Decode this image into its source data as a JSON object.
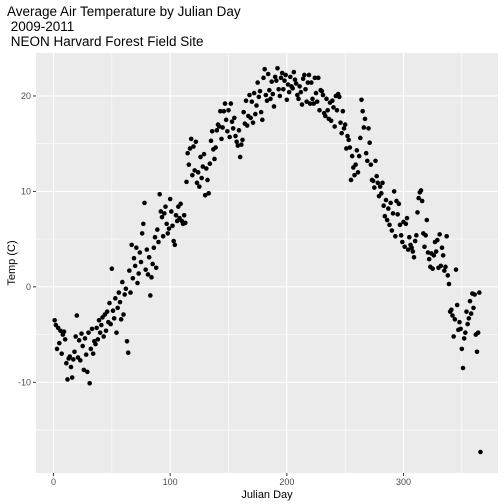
{
  "chart_data": {
    "type": "scatter",
    "title": "Average Air Temperature by Julian Day",
    "subtitle": [
      " 2009-2011",
      " NEON Harvard Forest Field Site"
    ],
    "xlabel": "Julian Day",
    "ylabel": "Temp (C)",
    "xlim": [
      -15,
      381
    ],
    "ylim": [
      -19.5,
      24.5
    ],
    "x_ticks": [
      0,
      100,
      200,
      300
    ],
    "y_ticks": [
      -10,
      0,
      10,
      20
    ],
    "x_tick_labels": [
      "0",
      "100",
      "200",
      "300"
    ],
    "y_tick_labels": [
      "-10",
      "0",
      "10",
      "20"
    ],
    "grid": true,
    "legend": "none",
    "colors": {
      "panel": "#EBEBEB",
      "grid_major": "#FFFFFF",
      "point": "#000000"
    },
    "points": [
      [
        1,
        -3.5
      ],
      [
        2,
        -4.0
      ],
      [
        3,
        -6.5
      ],
      [
        4,
        -4.3
      ],
      [
        5,
        -5.9
      ],
      [
        6,
        -4.6
      ],
      [
        7,
        -7.0
      ],
      [
        8,
        -5.0
      ],
      [
        9,
        -4.7
      ],
      [
        10,
        -5.5
      ],
      [
        11,
        -8.0
      ],
      [
        12,
        -9.7
      ],
      [
        13,
        -7.5
      ],
      [
        14,
        -7.3
      ],
      [
        15,
        -8.4
      ],
      [
        16,
        -9.5
      ],
      [
        17,
        -7.6
      ],
      [
        18,
        -6.8
      ],
      [
        19,
        -5.2
      ],
      [
        20,
        -3.0
      ],
      [
        21,
        -7.4
      ],
      [
        22,
        -5.6
      ],
      [
        23,
        -7.7
      ],
      [
        24,
        -4.9
      ],
      [
        25,
        -6.2
      ],
      [
        26,
        -8.7
      ],
      [
        27,
        -5.4
      ],
      [
        28,
        -7.1
      ],
      [
        29,
        -8.9
      ],
      [
        30,
        -4.8
      ],
      [
        31,
        -10.1
      ],
      [
        32,
        -6.5
      ],
      [
        33,
        -4.4
      ],
      [
        34,
        -7.0
      ],
      [
        35,
        -5.7
      ],
      [
        36,
        -6.0
      ],
      [
        37,
        -4.3
      ],
      [
        38,
        -5.5
      ],
      [
        39,
        -3.5
      ],
      [
        40,
        -4.8
      ],
      [
        41,
        -4.0
      ],
      [
        42,
        -3.2
      ],
      [
        43,
        -5.2
      ],
      [
        44,
        -2.9
      ],
      [
        45,
        -4.6
      ],
      [
        46,
        -2.6
      ],
      [
        47,
        -3.7
      ],
      [
        48,
        -1.7
      ],
      [
        49,
        -3.9
      ],
      [
        50,
        1.9
      ],
      [
        51,
        -2.5
      ],
      [
        52,
        -3.3
      ],
      [
        53,
        -1.2
      ],
      [
        54,
        -4.8
      ],
      [
        55,
        -2.2
      ],
      [
        56,
        -0.6
      ],
      [
        57,
        -1.6
      ],
      [
        58,
        -3.4
      ],
      [
        59,
        0.5
      ],
      [
        60,
        -2.9
      ],
      [
        61,
        -0.8
      ],
      [
        62,
        -0.2
      ],
      [
        63,
        -5.7
      ],
      [
        64,
        -6.9
      ],
      [
        65,
        1.7
      ],
      [
        66,
        -0.6
      ],
      [
        67,
        4.4
      ],
      [
        68,
        0.9
      ],
      [
        69,
        3.0
      ],
      [
        70,
        2.2
      ],
      [
        71,
        4.1
      ],
      [
        72,
        0.4
      ],
      [
        73,
        1.4
      ],
      [
        74,
        3.6
      ],
      [
        75,
        2.6
      ],
      [
        76,
        5.6
      ],
      [
        77,
        6.6
      ],
      [
        78,
        8.8
      ],
      [
        79,
        1.8
      ],
      [
        80,
        3.9
      ],
      [
        81,
        1.3
      ],
      [
        82,
        3.1
      ],
      [
        83,
        -0.9
      ],
      [
        84,
        1.0
      ],
      [
        85,
        2.4
      ],
      [
        86,
        4.1
      ],
      [
        87,
        5.2
      ],
      [
        88,
        2.0
      ],
      [
        89,
        6.0
      ],
      [
        90,
        4.7
      ],
      [
        91,
        9.7
      ],
      [
        92,
        7.9
      ],
      [
        93,
        7.3
      ],
      [
        94,
        5.3
      ],
      [
        95,
        7.7
      ],
      [
        96,
        8.4
      ],
      [
        97,
        6.6
      ],
      [
        98,
        5.6
      ],
      [
        99,
        6.1
      ],
      [
        100,
        9.2
      ],
      [
        101,
        7.9
      ],
      [
        102,
        6.4
      ],
      [
        103,
        4.8
      ],
      [
        104,
        4.4
      ],
      [
        105,
        7.5
      ],
      [
        106,
        6.9
      ],
      [
        107,
        8.4
      ],
      [
        108,
        7.2
      ],
      [
        109,
        8.7
      ],
      [
        110,
        6.9
      ],
      [
        111,
        6.6
      ],
      [
        112,
        7.5
      ],
      [
        113,
        6.7
      ],
      [
        114,
        11.0
      ],
      [
        115,
        14.0
      ],
      [
        116,
        12.8
      ],
      [
        117,
        14.5
      ],
      [
        118,
        15.5
      ],
      [
        119,
        11.7
      ],
      [
        120,
        14.7
      ],
      [
        121,
        12.2
      ],
      [
        122,
        15.2
      ],
      [
        123,
        10.9
      ],
      [
        124,
        12.0
      ],
      [
        125,
        10.5
      ],
      [
        126,
        13.6
      ],
      [
        127,
        11.4
      ],
      [
        128,
        12.6
      ],
      [
        129,
        13.9
      ],
      [
        130,
        9.6
      ],
      [
        131,
        12.4
      ],
      [
        132,
        11.2
      ],
      [
        133,
        9.8
      ],
      [
        134,
        12.9
      ],
      [
        135,
        15.3
      ],
      [
        136,
        16.3
      ],
      [
        137,
        14.4
      ],
      [
        138,
        13.4
      ],
      [
        139,
        14.6
      ],
      [
        140,
        16.4
      ],
      [
        141,
        17.0
      ],
      [
        142,
        16.8
      ],
      [
        143,
        18.4
      ],
      [
        144,
        15.5
      ],
      [
        145,
        16.7
      ],
      [
        146,
        18.4
      ],
      [
        147,
        19.2
      ],
      [
        148,
        17.5
      ],
      [
        149,
        16.3
      ],
      [
        150,
        18.5
      ],
      [
        151,
        15.7
      ],
      [
        152,
        19.2
      ],
      [
        153,
        17.3
      ],
      [
        154,
        16.6
      ],
      [
        155,
        17.7
      ],
      [
        156,
        15.8
      ],
      [
        157,
        15.2
      ],
      [
        158,
        14.8
      ],
      [
        159,
        16.4
      ],
      [
        160,
        13.6
      ],
      [
        161,
        14.9
      ],
      [
        162,
        15.4
      ],
      [
        163,
        18.3
      ],
      [
        164,
        17.1
      ],
      [
        165,
        19.5
      ],
      [
        166,
        16.9
      ],
      [
        167,
        17.9
      ],
      [
        168,
        20.1
      ],
      [
        169,
        17.7
      ],
      [
        170,
        19.4
      ],
      [
        171,
        17.2
      ],
      [
        172,
        20.3
      ],
      [
        173,
        18.1
      ],
      [
        174,
        19.0
      ],
      [
        175,
        21.4
      ],
      [
        176,
        19.9
      ],
      [
        177,
        20.5
      ],
      [
        178,
        18.3
      ],
      [
        179,
        17.5
      ],
      [
        180,
        21.9
      ],
      [
        181,
        22.8
      ],
      [
        182,
        20.1
      ],
      [
        183,
        19.5
      ],
      [
        184,
        22.3
      ],
      [
        185,
        20.6
      ],
      [
        186,
        19.7
      ],
      [
        187,
        21.5
      ],
      [
        188,
        20.2
      ],
      [
        189,
        18.9
      ],
      [
        190,
        22.0
      ],
      [
        191,
        21.6
      ],
      [
        192,
        22.9
      ],
      [
        193,
        20.7
      ],
      [
        194,
        20.0
      ],
      [
        195,
        21.9
      ],
      [
        196,
        22.4
      ],
      [
        197,
        20.7
      ],
      [
        198,
        21.6
      ],
      [
        199,
        22.2
      ],
      [
        200,
        19.6
      ],
      [
        201,
        21.2
      ],
      [
        202,
        20.4
      ],
      [
        203,
        22.0
      ],
      [
        204,
        21.0
      ],
      [
        205,
        20.8
      ],
      [
        206,
        22.5
      ],
      [
        207,
        21.7
      ],
      [
        208,
        21.3
      ],
      [
        209,
        20.1
      ],
      [
        210,
        19.7
      ],
      [
        211,
        21.0
      ],
      [
        212,
        20.4
      ],
      [
        213,
        19.1
      ],
      [
        214,
        21.8
      ],
      [
        215,
        22.2
      ],
      [
        216,
        20.7
      ],
      [
        217,
        19.4
      ],
      [
        218,
        21.4
      ],
      [
        219,
        22.2
      ],
      [
        220,
        19.2
      ],
      [
        221,
        21.4
      ],
      [
        222,
        19.7
      ],
      [
        223,
        19.2
      ],
      [
        224,
        21.9
      ],
      [
        225,
        20.3
      ],
      [
        226,
        19.4
      ],
      [
        227,
        21.9
      ],
      [
        228,
        18.5
      ],
      [
        229,
        20.6
      ],
      [
        230,
        20.5
      ],
      [
        231,
        20.1
      ],
      [
        232,
        18.2
      ],
      [
        233,
        17.9
      ],
      [
        234,
        19.7
      ],
      [
        235,
        18.5
      ],
      [
        236,
        17.6
      ],
      [
        237,
        19.3
      ],
      [
        238,
        17.4
      ],
      [
        239,
        19.5
      ],
      [
        240,
        18.8
      ],
      [
        241,
        16.8
      ],
      [
        242,
        20.0
      ],
      [
        243,
        18.5
      ],
      [
        244,
        20.2
      ],
      [
        245,
        19.9
      ],
      [
        246,
        17.2
      ],
      [
        247,
        16.1
      ],
      [
        248,
        18.4
      ],
      [
        249,
        16.6
      ],
      [
        250,
        17.0
      ],
      [
        251,
        14.5
      ],
      [
        252,
        15.8
      ],
      [
        253,
        15.4
      ],
      [
        254,
        14.6
      ],
      [
        255,
        11.2
      ],
      [
        256,
        13.7
      ],
      [
        257,
        12.5
      ],
      [
        258,
        11.7
      ],
      [
        259,
        12.8
      ],
      [
        260,
        14.3
      ],
      [
        261,
        12.0
      ],
      [
        262,
        13.7
      ],
      [
        263,
        15.6
      ],
      [
        264,
        19.6
      ],
      [
        265,
        18.4
      ],
      [
        266,
        16.7
      ],
      [
        267,
        17.6
      ],
      [
        268,
        14.0
      ],
      [
        269,
        13.2
      ],
      [
        270,
        16.6
      ],
      [
        271,
        15.1
      ],
      [
        272,
        12.8
      ],
      [
        273,
        11.2
      ],
      [
        274,
        11.1
      ],
      [
        275,
        10.4
      ],
      [
        276,
        13.2
      ],
      [
        277,
        11.6
      ],
      [
        278,
        10.9
      ],
      [
        279,
        9.5
      ],
      [
        280,
        10.5
      ],
      [
        281,
        9.8
      ],
      [
        282,
        10.9
      ],
      [
        283,
        8.5
      ],
      [
        284,
        7.4
      ],
      [
        285,
        9.1
      ],
      [
        286,
        7.0
      ],
      [
        287,
        8.2
      ],
      [
        288,
        6.5
      ],
      [
        289,
        8.8
      ],
      [
        290,
        5.9
      ],
      [
        291,
        7.7
      ],
      [
        292,
        10.0
      ],
      [
        293,
        5.3
      ],
      [
        294,
        9.0
      ],
      [
        295,
        7.6
      ],
      [
        296,
        8.7
      ],
      [
        297,
        6.5
      ],
      [
        298,
        5.4
      ],
      [
        299,
        4.7
      ],
      [
        300,
        6.8
      ],
      [
        301,
        4.2
      ],
      [
        302,
        6.6
      ],
      [
        303,
        7.2
      ],
      [
        304,
        3.9
      ],
      [
        305,
        5.2
      ],
      [
        306,
        4.4
      ],
      [
        307,
        4.1
      ],
      [
        308,
        3.7
      ],
      [
        309,
        3.1
      ],
      [
        310,
        4.8
      ],
      [
        311,
        5.4
      ],
      [
        312,
        7.8
      ],
      [
        313,
        9.3
      ],
      [
        314,
        9.9
      ],
      [
        315,
        10.1
      ],
      [
        316,
        9.0
      ],
      [
        317,
        5.6
      ],
      [
        318,
        4.2
      ],
      [
        319,
        5.4
      ],
      [
        320,
        7.0
      ],
      [
        321,
        3.6
      ],
      [
        322,
        2.9
      ],
      [
        323,
        2.1
      ],
      [
        324,
        3.5
      ],
      [
        325,
        1.9
      ],
      [
        326,
        3.3
      ],
      [
        327,
        4.7
      ],
      [
        328,
        3.7
      ],
      [
        329,
        4.9
      ],
      [
        330,
        2.0
      ],
      [
        331,
        5.5
      ],
      [
        332,
        2.2
      ],
      [
        333,
        4.1
      ],
      [
        334,
        3.3
      ],
      [
        335,
        1.7
      ],
      [
        336,
        2.1
      ],
      [
        337,
        5.3
      ],
      [
        338,
        1.2
      ],
      [
        339,
        0.3
      ],
      [
        340,
        -2.6
      ],
      [
        341,
        -2.4
      ],
      [
        342,
        -3.0
      ],
      [
        343,
        -5.2
      ],
      [
        344,
        -3.4
      ],
      [
        345,
        1.8
      ],
      [
        346,
        -1.9
      ],
      [
        347,
        -4.5
      ],
      [
        348,
        -3.7
      ],
      [
        349,
        -4.4
      ],
      [
        350,
        -6.5
      ],
      [
        351,
        -8.5
      ],
      [
        352,
        -5.4
      ],
      [
        353,
        -4.8
      ],
      [
        354,
        -2.6
      ],
      [
        355,
        -3.9
      ],
      [
        356,
        -3.3
      ],
      [
        357,
        -1.5
      ],
      [
        358,
        -2.8
      ],
      [
        359,
        -0.7
      ],
      [
        360,
        -2.2
      ],
      [
        361,
        -0.8
      ],
      [
        362,
        -5.0
      ],
      [
        363,
        -6.8
      ],
      [
        364,
        -4.8
      ],
      [
        365,
        -0.6
      ],
      [
        366,
        -17.3
      ]
    ]
  }
}
